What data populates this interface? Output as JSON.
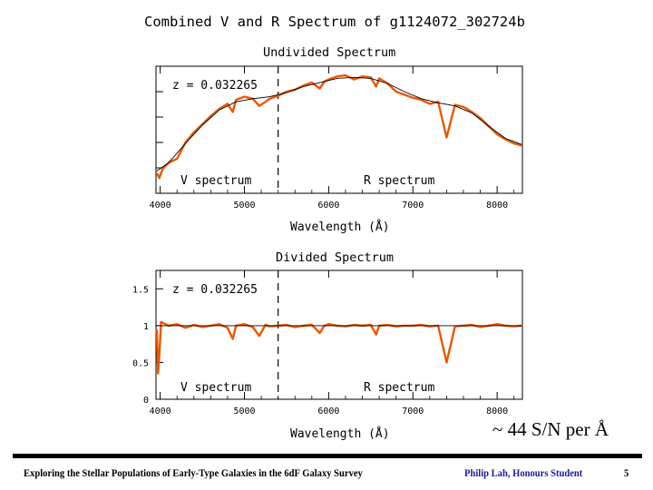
{
  "figure": {
    "title": "Combined V and R Spectrum of g1124072_302724b"
  },
  "chart_data": [
    {
      "type": "line",
      "title": "Undivided Spectrum",
      "xlabel": "Wavelength (Å)",
      "ylabel": "",
      "xlim": [
        3950,
        8300
      ],
      "ylim": [
        0,
        1.25
      ],
      "x_ticks": [
        4000,
        5000,
        6000,
        7000,
        8000
      ],
      "y_ticks": [],
      "annotation": "z = 0.032265",
      "region_labels": [
        "V spectrum",
        "R spectrum"
      ],
      "divider_x": 5400,
      "series": [
        {
          "name": "",
          "color": "#ee5500",
          "x": [
            3960,
            3990,
            4030,
            4100,
            4200,
            4300,
            4400,
            4500,
            4600,
            4700,
            4800,
            4862,
            4900,
            5000,
            5100,
            5175,
            5250,
            5300,
            5400,
            5500,
            5600,
            5700,
            5800,
            5893,
            5950,
            6000,
            6100,
            6200,
            6300,
            6400,
            6500,
            6563,
            6600,
            6700,
            6800,
            6900,
            7000,
            7100,
            7200,
            7300,
            7400,
            7500,
            7600,
            7700,
            7800,
            7900,
            8000,
            8100,
            8200,
            8290
          ],
          "y": [
            0.2,
            0.15,
            0.24,
            0.3,
            0.34,
            0.5,
            0.6,
            0.68,
            0.76,
            0.83,
            0.88,
            0.8,
            0.92,
            0.95,
            0.93,
            0.86,
            0.9,
            0.93,
            0.96,
            1.0,
            1.02,
            1.06,
            1.09,
            1.03,
            1.1,
            1.12,
            1.15,
            1.16,
            1.12,
            1.15,
            1.14,
            1.05,
            1.13,
            1.08,
            1.0,
            0.97,
            0.94,
            0.92,
            0.88,
            0.9,
            0.55,
            0.87,
            0.85,
            0.8,
            0.74,
            0.66,
            0.58,
            0.53,
            0.49,
            0.47
          ]
        },
        {
          "name": "",
          "color": "#000000",
          "x": [
            3960,
            4100,
            4300,
            4500,
            4700,
            4900,
            5100,
            5300,
            5500,
            5700,
            5900,
            6100,
            6300,
            6500,
            6700,
            6900,
            7100,
            7300,
            7500,
            7700,
            7900,
            8100,
            8290
          ],
          "y": [
            0.22,
            0.3,
            0.49,
            0.67,
            0.82,
            0.9,
            0.93,
            0.95,
            0.99,
            1.05,
            1.09,
            1.13,
            1.14,
            1.13,
            1.08,
            1.0,
            0.93,
            0.89,
            0.86,
            0.79,
            0.66,
            0.54,
            0.48
          ]
        }
      ]
    },
    {
      "type": "line",
      "title": "Divided Spectrum",
      "xlabel": "Wavelength (Å)",
      "ylabel": "",
      "xlim": [
        3950,
        8300
      ],
      "ylim": [
        0,
        1.75
      ],
      "x_ticks": [
        4000,
        5000,
        6000,
        7000,
        8000
      ],
      "y_ticks": [
        "0",
        "0.5",
        "1",
        "1.5"
      ],
      "y_tick_values": [
        0,
        0.5,
        1,
        1.5
      ],
      "annotation": "z = 0.032265",
      "region_labels": [
        "V spectrum",
        "R spectrum"
      ],
      "divider_x": 5400,
      "series": [
        {
          "name": "",
          "color": "#ee5500",
          "x": [
            3960,
            3975,
            3990,
            4010,
            4100,
            4200,
            4300,
            4400,
            4500,
            4600,
            4700,
            4800,
            4862,
            4900,
            5000,
            5100,
            5175,
            5250,
            5300,
            5400,
            5500,
            5600,
            5700,
            5800,
            5893,
            5950,
            6000,
            6100,
            6200,
            6300,
            6400,
            6500,
            6563,
            6600,
            6700,
            6800,
            6900,
            7000,
            7100,
            7200,
            7300,
            7400,
            7500,
            7600,
            7700,
            7800,
            7900,
            8000,
            8100,
            8200,
            8290
          ],
          "y": [
            0.95,
            0.35,
            0.6,
            1.05,
            1.0,
            1.02,
            0.97,
            1.01,
            0.98,
            1.0,
            1.02,
            0.97,
            0.82,
            1.0,
            1.02,
            0.98,
            0.86,
            1.01,
            0.99,
            1.0,
            1.01,
            0.98,
            1.0,
            1.01,
            0.9,
            1.0,
            1.02,
            1.0,
            0.99,
            1.01,
            1.0,
            1.01,
            0.88,
            1.0,
            1.01,
            0.99,
            1.0,
            1.0,
            1.01,
            0.99,
            1.0,
            0.5,
            0.99,
            1.0,
            1.01,
            0.98,
            1.0,
            1.02,
            1.0,
            0.99,
            1.0
          ]
        },
        {
          "name": "",
          "color": "#000000",
          "x": [
            3960,
            8290
          ],
          "y": [
            1.0,
            1.0
          ]
        }
      ]
    }
  ],
  "sn_note": "~ 44 S/N per Å",
  "footer": {
    "left": "Exploring the Stellar Populations of Early-Type Galaxies in the 6dF Galaxy Survey",
    "author": "Philip Lah,  Honours Student",
    "page": "5"
  }
}
